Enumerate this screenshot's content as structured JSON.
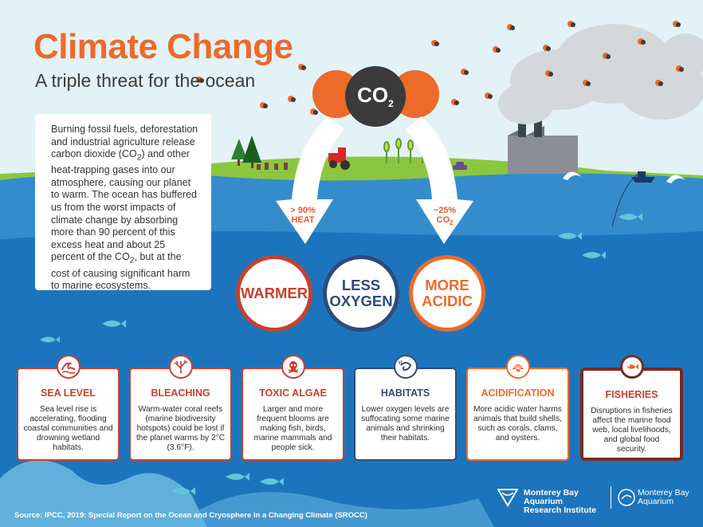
{
  "header": {
    "title": "Climate Change",
    "subtitle": "A triple threat for the ocean"
  },
  "intro": {
    "parts": [
      "Burning fossil fuels, deforestation and industrial agriculture release carbon dioxide (CO",
      "2",
      ") and other heat-trapping gases into our atmosphere, causing our planet to warm. The ocean has buffered us from the worst impacts of climate change by absorbing more than 90 percent of this excess heat and about 25 percent of the CO",
      "2",
      ", but at the cost of causing significant harm to marine ecosystems."
    ]
  },
  "co2": {
    "main": "CO",
    "sub": "2"
  },
  "arrows": {
    "heat": {
      "line1": "> 90%",
      "line2": "HEAT"
    },
    "co2": {
      "line1": "~25%",
      "line2": "CO",
      "line2_sub": "2"
    }
  },
  "threats": [
    {
      "line1": "WARMER",
      "line2": "",
      "color": "#c8402e"
    },
    {
      "line1": "LESS",
      "line2": "OXYGEN",
      "color": "#2f4a7c"
    },
    {
      "line1": "MORE",
      "line2": "ACIDIC",
      "color": "#ec6a2a"
    }
  ],
  "impacts": [
    {
      "title": "SEA LEVEL",
      "body": "Sea level rise is accelerating, flooding coastal communities and drowning wetland habitats.",
      "color": "#c8402e",
      "icon": "wave-icon"
    },
    {
      "title": "BLEACHING",
      "body": "Warm-water coral reefs (marine biodiversity hotspots) could be lost if the planet warms by 2°C (3.6°F).",
      "color": "#c8402e",
      "icon": "coral-icon"
    },
    {
      "title": "TOXIC ALGAE",
      "body": "Larger and more frequent blooms are making fish, birds, marine mammals and people sick.",
      "color": "#c8402e",
      "icon": "skull-icon"
    },
    {
      "title": "HABITATS",
      "body": "Lower oxygen levels are suffocating some marine animals and shrinking their habitats.",
      "color": "#2f4a7c",
      "icon": "shrimp-icon"
    },
    {
      "title": "ACIDIFICATION",
      "body": "More acidic water harms animals that build shells, such as corals, clams, and oysters.",
      "color": "#ec6a2a",
      "icon": "shell-icon"
    },
    {
      "title": "FISHERIES",
      "body": "Disruptions in fisheries affect the marine food web, local livelihoods, and global food security.",
      "color": "#c8402e",
      "icon": "fish-icon"
    }
  ],
  "footer": {
    "source": "Source: IPCC, 2019: Special Report on the Ocean and Cryosphere in a Changing Climate (SROCC)",
    "logo1_line1": "Monterey Bay Aquarium",
    "logo1_line2": "Research Institute",
    "logo2_line1": "Monterey Bay",
    "logo2_line2": "Aquarium"
  }
}
